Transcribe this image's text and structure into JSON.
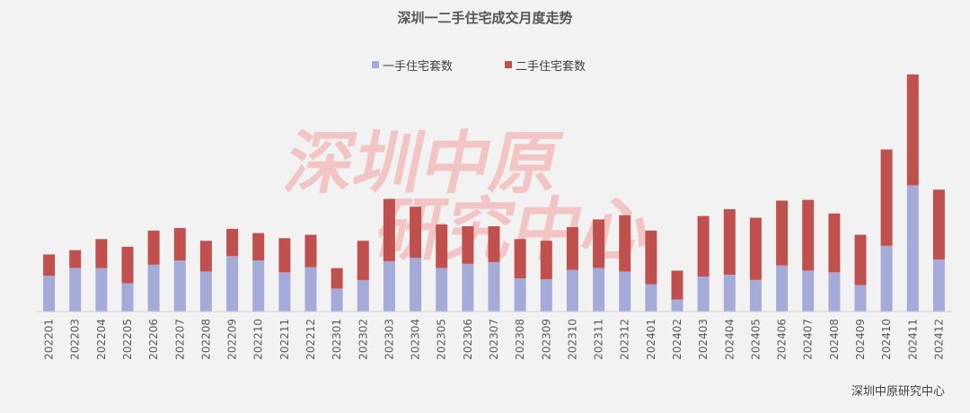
{
  "chart_data": {
    "type": "bar",
    "stacked": true,
    "title": "深圳一二手住宅成交月度走势",
    "categories": [
      "202201",
      "202203",
      "202204",
      "202205",
      "202206",
      "202207",
      "202208",
      "202209",
      "202210",
      "202211",
      "202212",
      "202301",
      "202302",
      "202303",
      "202304",
      "202305",
      "202306",
      "202307",
      "202308",
      "202309",
      "202310",
      "202311",
      "202312",
      "202401",
      "202402",
      "202403",
      "202404",
      "202405",
      "202406",
      "202407",
      "202408",
      "202409",
      "202410",
      "202411",
      "202412"
    ],
    "series": [
      {
        "name": "一手住宅套数",
        "color": "#a4abd9",
        "values": [
          42,
          51,
          51,
          33,
          55,
          60,
          47,
          65,
          60,
          46,
          52,
          27,
          37,
          59,
          63,
          51,
          56,
          58,
          39,
          38,
          49,
          51,
          47,
          32,
          14,
          41,
          43,
          37,
          54,
          48,
          46,
          31,
          77,
          148,
          61
        ]
      },
      {
        "name": "二手住宅套数",
        "color": "#c0504d",
        "values": [
          25,
          21,
          34,
          43,
          40,
          38,
          36,
          32,
          32,
          40,
          38,
          24,
          46,
          73,
          60,
          51,
          44,
          42,
          46,
          45,
          50,
          57,
          66,
          63,
          34,
          71,
          77,
          73,
          76,
          83,
          69,
          59,
          113,
          130,
          82
        ]
      }
    ],
    "legend_position": "top",
    "grid": false,
    "watermark": [
      "深圳中原",
      "研究中心"
    ],
    "source": "深圳中原研究中心"
  }
}
